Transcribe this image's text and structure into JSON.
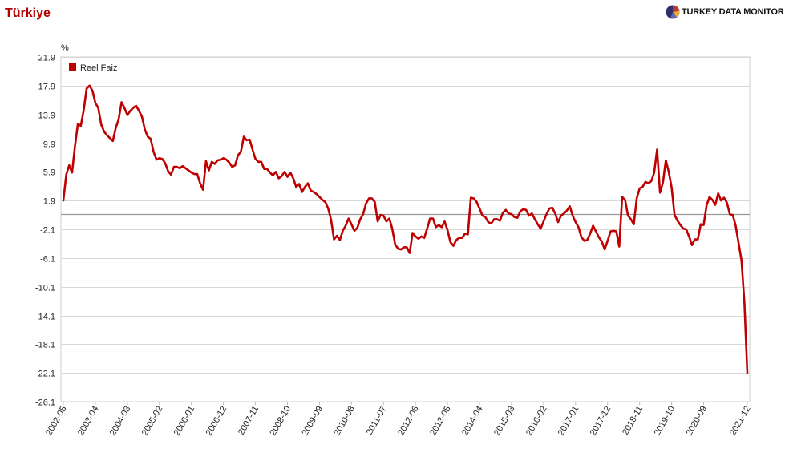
{
  "page": {
    "title": "Türkiye",
    "brand": "TURKEY DATA MONITOR",
    "colors": {
      "title": "#b00000",
      "series": "#c00000",
      "grid": "#d9d9d9",
      "zero_line": "#999999"
    }
  },
  "chart_data": {
    "type": "line",
    "title": "Türkiye",
    "ylabel": "%",
    "xlabel": "",
    "ylim": [
      -26.1,
      21.9
    ],
    "yticks": [
      21.9,
      17.9,
      13.9,
      9.9,
      5.9,
      1.9,
      -2.1,
      -6.1,
      -10.1,
      -14.1,
      -18.1,
      -22.1,
      -26.1
    ],
    "xticks": [
      "2002-05",
      "2003-04",
      "2004-03",
      "2005-02",
      "2006-01",
      "2006-12",
      "2007-11",
      "2008-10",
      "2009-09",
      "2010-08",
      "2011-07",
      "2012-06",
      "2013-05",
      "2014-04",
      "2015-03",
      "2016-02",
      "2017-01",
      "2017-12",
      "2018-11",
      "2019-10",
      "2020-09",
      "2021-12"
    ],
    "grid": true,
    "legend": "top-left",
    "series": [
      {
        "name": "Reel Faiz",
        "color": "#c00000",
        "points": [
          [
            "2002-05",
            1.9
          ],
          [
            "2002-06",
            5.5
          ],
          [
            "2002-07",
            6.8
          ],
          [
            "2002-08",
            5.8
          ],
          [
            "2002-09",
            9.5
          ],
          [
            "2002-10",
            12.6
          ],
          [
            "2002-11",
            12.3
          ],
          [
            "2002-12",
            14.5
          ],
          [
            "2003-01",
            17.5
          ],
          [
            "2003-02",
            17.9
          ],
          [
            "2003-03",
            17.2
          ],
          [
            "2003-04",
            15.5
          ],
          [
            "2003-05",
            14.8
          ],
          [
            "2003-06",
            12.5
          ],
          [
            "2003-07",
            11.5
          ],
          [
            "2003-08",
            11.0
          ],
          [
            "2003-09",
            10.6
          ],
          [
            "2003-10",
            10.2
          ],
          [
            "2003-11",
            12.0
          ],
          [
            "2003-12",
            13.2
          ],
          [
            "2004-01",
            15.6
          ],
          [
            "2004-02",
            14.8
          ],
          [
            "2004-03",
            13.8
          ],
          [
            "2004-04",
            14.4
          ],
          [
            "2004-05",
            14.8
          ],
          [
            "2004-06",
            15.1
          ],
          [
            "2004-07",
            14.4
          ],
          [
            "2004-08",
            13.6
          ],
          [
            "2004-09",
            11.8
          ],
          [
            "2004-10",
            10.8
          ],
          [
            "2004-11",
            10.5
          ],
          [
            "2004-12",
            8.7
          ],
          [
            "2005-01",
            7.6
          ],
          [
            "2005-02",
            7.8
          ],
          [
            "2005-03",
            7.7
          ],
          [
            "2005-04",
            7.1
          ],
          [
            "2005-05",
            6.0
          ],
          [
            "2005-06",
            5.5
          ],
          [
            "2005-07",
            6.6
          ],
          [
            "2005-08",
            6.6
          ],
          [
            "2005-09",
            6.4
          ],
          [
            "2005-10",
            6.7
          ],
          [
            "2005-11",
            6.4
          ],
          [
            "2005-12",
            6.1
          ],
          [
            "2006-01",
            5.8
          ],
          [
            "2006-02",
            5.6
          ],
          [
            "2006-03",
            5.6
          ],
          [
            "2006-04",
            4.3
          ],
          [
            "2006-05",
            3.4
          ],
          [
            "2006-06",
            7.4
          ],
          [
            "2006-07",
            6.1
          ],
          [
            "2006-08",
            7.3
          ],
          [
            "2006-09",
            7.0
          ],
          [
            "2006-10",
            7.5
          ],
          [
            "2006-11",
            7.6
          ],
          [
            "2006-12",
            7.8
          ],
          [
            "2007-01",
            7.6
          ],
          [
            "2007-02",
            7.2
          ],
          [
            "2007-03",
            6.6
          ],
          [
            "2007-04",
            6.8
          ],
          [
            "2007-05",
            8.2
          ],
          [
            "2007-06",
            8.7
          ],
          [
            "2007-07",
            10.8
          ],
          [
            "2007-08",
            10.3
          ],
          [
            "2007-09",
            10.4
          ],
          [
            "2007-10",
            9.0
          ],
          [
            "2007-11",
            7.7
          ],
          [
            "2007-12",
            7.3
          ],
          [
            "2008-01",
            7.3
          ],
          [
            "2008-02",
            6.3
          ],
          [
            "2008-03",
            6.3
          ],
          [
            "2008-04",
            5.8
          ],
          [
            "2008-05",
            5.4
          ],
          [
            "2008-06",
            5.9
          ],
          [
            "2008-07",
            5.0
          ],
          [
            "2008-08",
            5.3
          ],
          [
            "2008-09",
            5.9
          ],
          [
            "2008-10",
            5.2
          ],
          [
            "2008-11",
            5.8
          ],
          [
            "2008-12",
            5.0
          ],
          [
            "2009-01",
            3.8
          ],
          [
            "2009-02",
            4.2
          ],
          [
            "2009-03",
            3.1
          ],
          [
            "2009-04",
            3.8
          ],
          [
            "2009-05",
            4.3
          ],
          [
            "2009-06",
            3.3
          ],
          [
            "2009-07",
            3.1
          ],
          [
            "2009-08",
            2.8
          ],
          [
            "2009-09",
            2.4
          ],
          [
            "2009-10",
            2.0
          ],
          [
            "2009-11",
            1.7
          ],
          [
            "2009-12",
            0.8
          ],
          [
            "2010-01",
            -0.8
          ],
          [
            "2010-02",
            -3.5
          ],
          [
            "2010-03",
            -3.0
          ],
          [
            "2010-04",
            -3.6
          ],
          [
            "2010-05",
            -2.3
          ],
          [
            "2010-06",
            -1.6
          ],
          [
            "2010-07",
            -0.6
          ],
          [
            "2010-08",
            -1.4
          ],
          [
            "2010-09",
            -2.3
          ],
          [
            "2010-10",
            -1.9
          ],
          [
            "2010-11",
            -0.7
          ],
          [
            "2010-12",
            0.0
          ],
          [
            "2011-01",
            1.5
          ],
          [
            "2011-02",
            2.2
          ],
          [
            "2011-03",
            2.2
          ],
          [
            "2011-04",
            1.7
          ],
          [
            "2011-05",
            -1.0
          ],
          [
            "2011-06",
            -0.1
          ],
          [
            "2011-07",
            -0.2
          ],
          [
            "2011-08",
            -1.0
          ],
          [
            "2011-09",
            -0.6
          ],
          [
            "2011-10",
            -2.0
          ],
          [
            "2011-11",
            -4.2
          ],
          [
            "2011-12",
            -4.8
          ],
          [
            "2012-01",
            -4.9
          ],
          [
            "2012-02",
            -4.6
          ],
          [
            "2012-03",
            -4.6
          ],
          [
            "2012-04",
            -5.4
          ],
          [
            "2012-05",
            -2.6
          ],
          [
            "2012-06",
            -3.1
          ],
          [
            "2012-07",
            -3.4
          ],
          [
            "2012-08",
            -3.1
          ],
          [
            "2012-09",
            -3.3
          ],
          [
            "2012-10",
            -2.0
          ],
          [
            "2012-11",
            -0.6
          ],
          [
            "2012-12",
            -0.6
          ],
          [
            "2013-01",
            -1.8
          ],
          [
            "2013-02",
            -1.5
          ],
          [
            "2013-03",
            -1.8
          ],
          [
            "2013-04",
            -1.0
          ],
          [
            "2013-05",
            -2.2
          ],
          [
            "2013-06",
            -3.9
          ],
          [
            "2013-07",
            -4.4
          ],
          [
            "2013-08",
            -3.6
          ],
          [
            "2013-09",
            -3.3
          ],
          [
            "2013-10",
            -3.3
          ],
          [
            "2013-11",
            -2.7
          ],
          [
            "2013-12",
            -2.8
          ],
          [
            "2014-01",
            2.3
          ],
          [
            "2014-02",
            2.2
          ],
          [
            "2014-03",
            1.7
          ],
          [
            "2014-04",
            0.8
          ],
          [
            "2014-05",
            -0.2
          ],
          [
            "2014-06",
            -0.4
          ],
          [
            "2014-07",
            -1.1
          ],
          [
            "2014-08",
            -1.3
          ],
          [
            "2014-09",
            -0.7
          ],
          [
            "2014-10",
            -0.7
          ],
          [
            "2014-11",
            -0.9
          ],
          [
            "2014-12",
            0.2
          ],
          [
            "2015-01",
            0.6
          ],
          [
            "2015-02",
            0.1
          ],
          [
            "2015-03",
            0.0
          ],
          [
            "2015-04",
            -0.4
          ],
          [
            "2015-05",
            -0.5
          ],
          [
            "2015-06",
            0.4
          ],
          [
            "2015-07",
            0.7
          ],
          [
            "2015-08",
            0.6
          ],
          [
            "2015-09",
            -0.2
          ],
          [
            "2015-10",
            0.1
          ],
          [
            "2015-11",
            -0.7
          ],
          [
            "2015-12",
            -1.4
          ],
          [
            "2016-01",
            -2.0
          ],
          [
            "2016-02",
            -1.0
          ],
          [
            "2016-03",
            0.0
          ],
          [
            "2016-04",
            0.8
          ],
          [
            "2016-05",
            0.9
          ],
          [
            "2016-06",
            0.1
          ],
          [
            "2016-07",
            -1.1
          ],
          [
            "2016-08",
            -0.2
          ],
          [
            "2016-09",
            0.1
          ],
          [
            "2016-10",
            0.5
          ],
          [
            "2016-11",
            1.1
          ],
          [
            "2016-12",
            -0.2
          ],
          [
            "2017-01",
            -1.1
          ],
          [
            "2017-02",
            -1.8
          ],
          [
            "2017-03",
            -3.2
          ],
          [
            "2017-04",
            -3.7
          ],
          [
            "2017-05",
            -3.6
          ],
          [
            "2017-06",
            -2.7
          ],
          [
            "2017-07",
            -1.6
          ],
          [
            "2017-08",
            -2.4
          ],
          [
            "2017-09",
            -3.2
          ],
          [
            "2017-10",
            -3.8
          ],
          [
            "2017-11",
            -4.9
          ],
          [
            "2017-12",
            -3.7
          ],
          [
            "2018-01",
            -2.4
          ],
          [
            "2018-02",
            -2.3
          ],
          [
            "2018-03",
            -2.4
          ],
          [
            "2018-04",
            -4.5
          ],
          [
            "2018-05",
            2.4
          ],
          [
            "2018-06",
            2.0
          ],
          [
            "2018-07",
            -0.2
          ],
          [
            "2018-08",
            -0.7
          ],
          [
            "2018-09",
            -1.4
          ],
          [
            "2018-10",
            2.2
          ],
          [
            "2018-11",
            3.6
          ],
          [
            "2018-12",
            3.8
          ],
          [
            "2019-01",
            4.5
          ],
          [
            "2019-02",
            4.3
          ],
          [
            "2019-03",
            4.6
          ],
          [
            "2019-04",
            5.8
          ],
          [
            "2019-05",
            9.0
          ],
          [
            "2019-06",
            3.0
          ],
          [
            "2019-07",
            4.4
          ],
          [
            "2019-08",
            7.5
          ],
          [
            "2019-09",
            5.9
          ],
          [
            "2019-10",
            3.7
          ],
          [
            "2019-11",
            -0.1
          ],
          [
            "2019-12",
            -0.9
          ],
          [
            "2020-01",
            -1.5
          ],
          [
            "2020-02",
            -2.0
          ],
          [
            "2020-03",
            -2.1
          ],
          [
            "2020-04",
            -3.1
          ],
          [
            "2020-05",
            -4.3
          ],
          [
            "2020-06",
            -3.5
          ],
          [
            "2020-07",
            -3.5
          ],
          [
            "2020-08",
            -1.4
          ],
          [
            "2020-09",
            -1.5
          ],
          [
            "2020-10",
            1.2
          ],
          [
            "2020-11",
            2.4
          ],
          [
            "2020-12",
            2.0
          ],
          [
            "2021-01",
            1.3
          ],
          [
            "2021-02",
            2.9
          ],
          [
            "2021-03",
            1.9
          ],
          [
            "2021-04",
            2.3
          ],
          [
            "2021-05",
            1.6
          ],
          [
            "2021-06",
            0.0
          ],
          [
            "2021-07",
            -0.1
          ],
          [
            "2021-08",
            -1.6
          ],
          [
            "2021-09",
            -4.0
          ],
          [
            "2021-10",
            -6.4
          ],
          [
            "2021-11",
            -12.3
          ],
          [
            "2021-12",
            -22.1
          ]
        ]
      }
    ]
  }
}
